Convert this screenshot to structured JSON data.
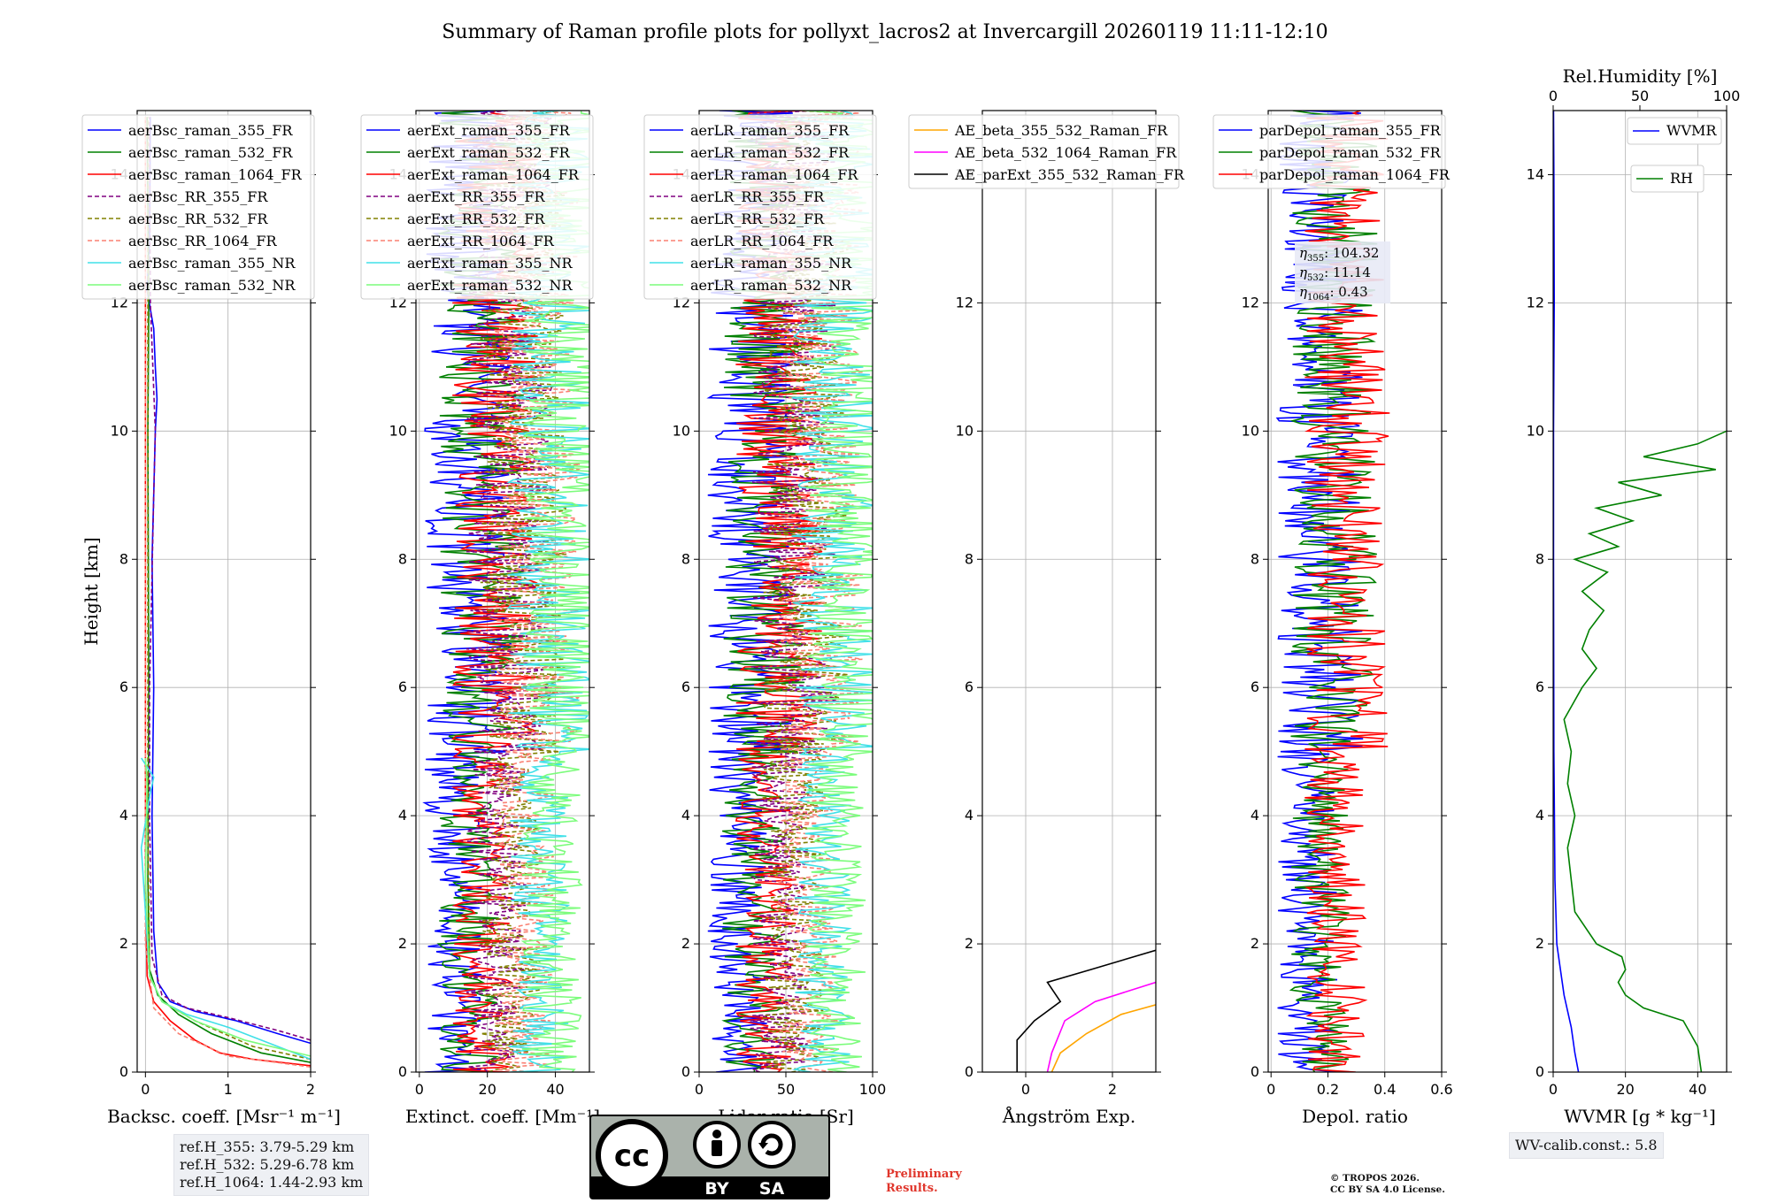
{
  "title": "Summary of Raman profile plots for pollyxt_lacros2 at Invercargill 20260119 11:11-12:10",
  "height_axis": {
    "label": "Height [km]",
    "range": [
      0,
      15
    ],
    "ticks": [
      0,
      2,
      4,
      6,
      8,
      10,
      12,
      14
    ]
  },
  "chart_data": [
    {
      "type": "line",
      "id": "bsc",
      "xlabel": "Backsc. coeff. [Msr⁻¹ m⁻¹]",
      "xlim": [
        -0.1,
        2
      ],
      "xticks": [
        0,
        1,
        2
      ],
      "ylabel": "Height [km]",
      "ylim": [
        0,
        15
      ],
      "series": [
        {
          "name": "aerBsc_raman_355_FR",
          "color": "#0000ff",
          "dash": "",
          "points": [
            [
              2.0,
              0.45
            ],
            [
              1.6,
              0.6
            ],
            [
              1.1,
              0.8
            ],
            [
              0.6,
              0.95
            ],
            [
              0.3,
              1.1
            ],
            [
              0.15,
              1.4
            ],
            [
              0.1,
              2.2
            ],
            [
              0.08,
              4
            ],
            [
              0.1,
              6
            ],
            [
              0.08,
              8
            ],
            [
              0.1,
              9
            ],
            [
              0.12,
              10
            ],
            [
              0.14,
              10.5
            ],
            [
              0.12,
              11
            ],
            [
              0.1,
              11.6
            ],
            [
              0.02,
              12.2
            ],
            [
              0.05,
              13
            ],
            [
              0.06,
              14.9
            ]
          ]
        },
        {
          "name": "aerBsc_raman_532_FR",
          "color": "#008000",
          "dash": "",
          "points": [
            [
              2.0,
              0.15
            ],
            [
              1.4,
              0.3
            ],
            [
              0.8,
              0.6
            ],
            [
              0.4,
              0.9
            ],
            [
              0.15,
              1.2
            ],
            [
              0.05,
              1.6
            ],
            [
              0.03,
              3
            ],
            [
              0.04,
              6
            ],
            [
              0.03,
              10
            ],
            [
              0.04,
              12
            ],
            [
              0.02,
              14.9
            ]
          ]
        },
        {
          "name": "aerBsc_raman_1064_FR",
          "color": "#ff0000",
          "dash": "",
          "points": [
            [
              2.0,
              0.1
            ],
            [
              1.3,
              0.2
            ],
            [
              0.9,
              0.3
            ],
            [
              0.6,
              0.5
            ],
            [
              0.3,
              0.8
            ],
            [
              0.1,
              1.1
            ],
            [
              0.02,
              1.5
            ],
            [
              0.0,
              3
            ],
            [
              0.0,
              8
            ],
            [
              0.0,
              12
            ],
            [
              0.0,
              14.9
            ]
          ]
        },
        {
          "name": "aerBsc_RR_355_FR",
          "color": "#800080",
          "dash": "5,3",
          "points": [
            [
              2.0,
              0.5
            ],
            [
              1.6,
              0.65
            ],
            [
              1.0,
              0.85
            ],
            [
              0.5,
              1.0
            ],
            [
              0.2,
              1.2
            ],
            [
              0.08,
              1.8
            ],
            [
              0.05,
              4
            ],
            [
              0.05,
              6
            ],
            [
              0.1,
              9
            ],
            [
              0.12,
              10
            ],
            [
              0.06,
              12
            ],
            [
              0.05,
              14.9
            ]
          ]
        },
        {
          "name": "aerBsc_RR_532_FR",
          "color": "#808000",
          "dash": "5,3",
          "points": [
            [
              2.0,
              0.2
            ],
            [
              1.3,
              0.4
            ],
            [
              0.6,
              0.8
            ],
            [
              0.2,
              1.1
            ],
            [
              0.05,
              1.5
            ],
            [
              0.03,
              4
            ],
            [
              0.03,
              10
            ],
            [
              0.03,
              14.9
            ]
          ]
        },
        {
          "name": "aerBsc_RR_1064_FR",
          "color": "#fa8072",
          "dash": "5,3",
          "points": [
            [
              2.0,
              0.08
            ],
            [
              1.0,
              0.25
            ],
            [
              0.4,
              0.6
            ],
            [
              0.1,
              1.0
            ],
            [
              0.0,
              2
            ],
            [
              0.0,
              14.9
            ]
          ]
        },
        {
          "name": "aerBsc_raman_355_NR",
          "color": "#40e0e8",
          "dash": "",
          "points": [
            [
              2.0,
              0.2
            ],
            [
              1.5,
              0.45
            ],
            [
              1.0,
              0.7
            ],
            [
              0.5,
              0.9
            ],
            [
              0.2,
              1.1
            ],
            [
              0.05,
              1.5
            ],
            [
              0.0,
              2.5
            ],
            [
              -0.05,
              3.5
            ],
            [
              0.05,
              4.3
            ],
            [
              0.1,
              4.6
            ],
            [
              -0.05,
              4.9
            ]
          ]
        },
        {
          "name": "aerBsc_raman_532_NR",
          "color": "#7cfc7c",
          "dash": "",
          "points": [
            [
              2.0,
              0.25
            ],
            [
              1.2,
              0.5
            ],
            [
              0.6,
              0.8
            ],
            [
              0.2,
              1.1
            ],
            [
              0.05,
              1.5
            ],
            [
              0.0,
              3
            ],
            [
              0.02,
              4.5
            ],
            [
              0.0,
              4.9
            ]
          ]
        }
      ],
      "legend": "top-left"
    },
    {
      "type": "line",
      "id": "ext",
      "xlabel": "Extinct. coeff. [Mm⁻¹]",
      "xlim": [
        -1,
        50
      ],
      "xticks": [
        0,
        20,
        40
      ],
      "ylim": [
        0,
        15
      ],
      "series": [
        {
          "name": "aerExt_raman_355_FR",
          "color": "#0000ff",
          "dash": ""
        },
        {
          "name": "aerExt_raman_532_FR",
          "color": "#008000",
          "dash": ""
        },
        {
          "name": "aerExt_raman_1064_FR",
          "color": "#ff0000",
          "dash": ""
        },
        {
          "name": "aerExt_RR_355_FR",
          "color": "#800080",
          "dash": "5,3"
        },
        {
          "name": "aerExt_RR_532_FR",
          "color": "#808000",
          "dash": "5,3"
        },
        {
          "name": "aerExt_RR_1064_FR",
          "color": "#fa8072",
          "dash": "5,3"
        },
        {
          "name": "aerExt_raman_355_NR",
          "color": "#40e0e8",
          "dash": ""
        },
        {
          "name": "aerExt_raman_532_NR",
          "color": "#7cfc7c",
          "dash": ""
        }
      ],
      "legend": "top-left"
    },
    {
      "type": "line",
      "id": "lr",
      "xlabel": "Lidar ratio [Sr]",
      "xlim": [
        0,
        100
      ],
      "xticks": [
        0,
        50,
        100
      ],
      "ylim": [
        0,
        15
      ],
      "series": [
        {
          "name": "aerLR_raman_355_FR",
          "color": "#0000ff",
          "dash": ""
        },
        {
          "name": "aerLR_raman_532_FR",
          "color": "#008000",
          "dash": ""
        },
        {
          "name": "aerLR_raman_1064_FR",
          "color": "#ff0000",
          "dash": ""
        },
        {
          "name": "aerLR_RR_355_FR",
          "color": "#800080",
          "dash": "5,3"
        },
        {
          "name": "aerLR_RR_532_FR",
          "color": "#808000",
          "dash": "5,3"
        },
        {
          "name": "aerLR_RR_1064_FR",
          "color": "#fa8072",
          "dash": "5,3"
        },
        {
          "name": "aerLR_raman_355_NR",
          "color": "#40e0e8",
          "dash": ""
        },
        {
          "name": "aerLR_raman_532_NR",
          "color": "#7cfc7c",
          "dash": ""
        }
      ],
      "legend": "top-left"
    },
    {
      "type": "line",
      "id": "ae",
      "xlabel": "Ångström Exp.",
      "xlim": [
        -1,
        3
      ],
      "xticks": [
        0,
        2
      ],
      "ylim": [
        0,
        15
      ],
      "series": [
        {
          "name": "AE_beta_355_532_Raman_FR",
          "color": "#ffa500",
          "dash": "",
          "points": [
            [
              0.6,
              0
            ],
            [
              0.8,
              0.3
            ],
            [
              1.4,
              0.6
            ],
            [
              2.2,
              0.9
            ],
            [
              3.0,
              1.05
            ]
          ]
        },
        {
          "name": "AE_beta_532_1064_Raman_FR",
          "color": "#ff00ff",
          "dash": "",
          "points": [
            [
              0.5,
              0
            ],
            [
              0.6,
              0.3
            ],
            [
              0.9,
              0.8
            ],
            [
              1.6,
              1.1
            ],
            [
              3.0,
              1.4
            ]
          ]
        },
        {
          "name": "AE_parExt_355_532_Raman_FR",
          "color": "#000000",
          "dash": "",
          "points": [
            [
              -0.2,
              0
            ],
            [
              -0.2,
              0.5
            ],
            [
              0.2,
              0.8
            ],
            [
              0.8,
              1.1
            ],
            [
              0.5,
              1.4
            ],
            [
              1.5,
              1.6
            ],
            [
              3.0,
              1.9
            ]
          ]
        }
      ],
      "legend": "top-left"
    },
    {
      "type": "line",
      "id": "depol",
      "xlabel": "Depol. ratio",
      "xlim": [
        -0.01,
        0.6
      ],
      "xticks": [
        0.0,
        0.2,
        0.4,
        0.6
      ],
      "ylim": [
        0,
        15
      ],
      "series": [
        {
          "name": "parDepol_raman_355_FR",
          "color": "#0000ff",
          "dash": ""
        },
        {
          "name": "parDepol_raman_532_FR",
          "color": "#008000",
          "dash": ""
        },
        {
          "name": "parDepol_raman_1064_FR",
          "color": "#ff0000",
          "dash": ""
        }
      ],
      "legend": "top-left",
      "annotations": [
        {
          "sym": "η",
          "sub": "355",
          "value": "104.32"
        },
        {
          "sym": "η",
          "sub": "532",
          "value": "11.14"
        },
        {
          "sym": "η",
          "sub": "1064",
          "value": "0.43"
        }
      ]
    },
    {
      "type": "line",
      "id": "wv",
      "xlabel": "WVMR [g * kg⁻¹]",
      "xlim": [
        0,
        48
      ],
      "xticks": [
        0,
        20,
        40
      ],
      "ylim": [
        0,
        15
      ],
      "top_xlabel": "Rel.Humidity [%]",
      "top_xlim": [
        0,
        100
      ],
      "top_xticks": [
        0,
        50,
        100
      ],
      "series": [
        {
          "name": "WVMR",
          "color": "#0000ff",
          "dash": "",
          "points": [
            [
              7,
              0
            ],
            [
              6,
              0.3
            ],
            [
              5,
              0.7
            ],
            [
              3,
              1.2
            ],
            [
              2,
              1.6
            ],
            [
              1,
              2
            ],
            [
              0.5,
              3
            ],
            [
              0.2,
              5
            ],
            [
              0.1,
              8
            ],
            [
              0.1,
              10
            ],
            [
              0.3,
              12
            ],
            [
              0.2,
              14
            ],
            [
              0.1,
              15
            ]
          ]
        },
        {
          "name": "RH",
          "color": "#008000",
          "dash": "",
          "points": [
            [
              41,
              0
            ],
            [
              40,
              0.4
            ],
            [
              36,
              0.8
            ],
            [
              25,
              1.0
            ],
            [
              20,
              1.2
            ],
            [
              18,
              1.4
            ],
            [
              20,
              1.6
            ],
            [
              19,
              1.8
            ],
            [
              12,
              2.0
            ],
            [
              6,
              2.5
            ],
            [
              5,
              3
            ],
            [
              4,
              3.5
            ],
            [
              6,
              4
            ],
            [
              4,
              4.5
            ],
            [
              5,
              5
            ],
            [
              3,
              5.5
            ],
            [
              8,
              6
            ],
            [
              12,
              6.3
            ],
            [
              8,
              6.6
            ],
            [
              10,
              6.9
            ],
            [
              14,
              7.2
            ],
            [
              8,
              7.5
            ],
            [
              15,
              7.8
            ],
            [
              6,
              8
            ],
            [
              18,
              8.2
            ],
            [
              10,
              8.4
            ],
            [
              22,
              8.6
            ],
            [
              12,
              8.8
            ],
            [
              30,
              9
            ],
            [
              18,
              9.2
            ],
            [
              45,
              9.4
            ],
            [
              25,
              9.6
            ],
            [
              40,
              9.8
            ],
            [
              48,
              10
            ]
          ]
        }
      ],
      "legend": "top-right"
    }
  ],
  "ref_heights": [
    "ref.H_355: 3.79-5.29 km",
    "ref.H_532: 5.29-6.78 km",
    "ref.H_1064: 1.44-2.93 km"
  ],
  "wv_calib": "WV-calib.const.: 5.8",
  "license_badge": {
    "cc": "cc",
    "by": "BY",
    "sa": "SA"
  },
  "preliminary": [
    "Preliminary",
    "Results."
  ],
  "copyright": [
    "© TROPOS 2026.",
    "CC BY SA 4.0 License."
  ],
  "colors": {
    "grid": "#b0b0b0",
    "axis": "#000000",
    "prelim": "#e0362c"
  }
}
